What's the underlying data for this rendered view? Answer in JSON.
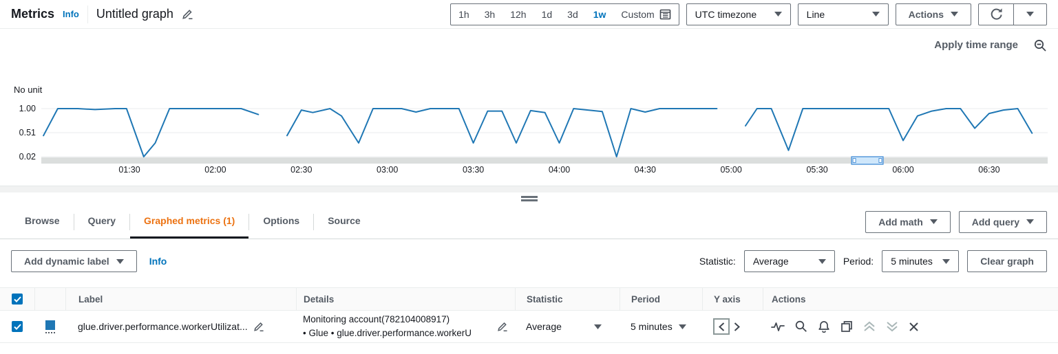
{
  "header": {
    "title": "Metrics",
    "info_label": "Info",
    "graph_title": "Untitled graph",
    "time_ranges": [
      "1h",
      "3h",
      "12h",
      "1d",
      "3d",
      "1w"
    ],
    "selected_time_range": "1w",
    "custom_label": "Custom",
    "timezone_dropdown_value": "UTC timezone",
    "chart_type_dropdown_value": "Line",
    "actions_label": "Actions"
  },
  "chart": {
    "apply_time_range_label": "Apply time range",
    "unit_label": "No unit"
  },
  "chart_data": {
    "type": "line",
    "title": "",
    "ylabel": "No unit",
    "xlabel": "",
    "grid": true,
    "legend": false,
    "ylim": [
      0.02,
      1.06
    ],
    "y_ticks": [
      1.0,
      0.51,
      0.02
    ],
    "x_ticks": [
      {
        "label": "01:30",
        "minutes": 90
      },
      {
        "label": "02:00",
        "minutes": 120
      },
      {
        "label": "02:30",
        "minutes": 150
      },
      {
        "label": "03:00",
        "minutes": 180
      },
      {
        "label": "03:30",
        "minutes": 210
      },
      {
        "label": "04:00",
        "minutes": 240
      },
      {
        "label": "04:30",
        "minutes": 270
      },
      {
        "label": "05:00",
        "minutes": 300
      },
      {
        "label": "05:30",
        "minutes": 330
      },
      {
        "label": "06:00",
        "minutes": 360
      },
      {
        "label": "06:30",
        "minutes": 390
      }
    ],
    "series": [
      {
        "name": "glue.driver.performance.workerUtilization",
        "color": "#1f77b4",
        "statistic": "Average",
        "period": "5 minutes",
        "segments": [
          [
            [
              60,
              0.45
            ],
            [
              65,
              1.0
            ],
            [
              72,
              1.0
            ],
            [
              78,
              0.98
            ],
            [
              85,
              1.0
            ],
            [
              89,
              1.0
            ],
            [
              95,
              0.02
            ],
            [
              99,
              0.3
            ],
            [
              104,
              1.0
            ],
            [
              129,
              1.0
            ],
            [
              135,
              0.88
            ]
          ],
          [
            [
              145,
              0.45
            ],
            [
              150,
              0.97
            ],
            [
              154,
              0.92
            ],
            [
              160,
              1.0
            ],
            [
              164,
              0.85
            ],
            [
              170,
              0.3
            ],
            [
              175,
              1.0
            ],
            [
              185,
              1.0
            ],
            [
              190,
              0.93
            ],
            [
              195,
              1.0
            ],
            [
              205,
              1.0
            ],
            [
              210,
              0.3
            ],
            [
              215,
              0.95
            ],
            [
              220,
              0.95
            ],
            [
              225,
              0.3
            ],
            [
              230,
              0.96
            ],
            [
              235,
              0.92
            ],
            [
              240,
              0.3
            ],
            [
              245,
              1.0
            ],
            [
              255,
              0.94
            ],
            [
              260,
              0.02
            ],
            [
              265,
              1.0
            ],
            [
              270,
              0.93
            ],
            [
              275,
              1.0
            ],
            [
              295,
              1.0
            ]
          ],
          [
            [
              305,
              0.65
            ],
            [
              309,
              1.0
            ],
            [
              314,
              1.0
            ],
            [
              320,
              0.15
            ],
            [
              325,
              1.0
            ],
            [
              355,
              1.0
            ],
            [
              360,
              0.35
            ],
            [
              365,
              0.85
            ],
            [
              370,
              0.95
            ],
            [
              375,
              1.0
            ],
            [
              380,
              1.0
            ],
            [
              385,
              0.6
            ],
            [
              390,
              0.9
            ],
            [
              395,
              0.97
            ],
            [
              400,
              1.0
            ],
            [
              405,
              0.5
            ]
          ]
        ]
      }
    ],
    "scrollbar": {
      "thumb_start_minutes": 342,
      "thumb_end_minutes": 353
    }
  },
  "tabs": {
    "items": [
      {
        "label": "Browse"
      },
      {
        "label": "Query"
      },
      {
        "label": "Graphed metrics (1)"
      },
      {
        "label": "Options"
      },
      {
        "label": "Source"
      }
    ],
    "active": "Graphed metrics (1)",
    "add_math_label": "Add math",
    "add_query_label": "Add query"
  },
  "toolbar": {
    "add_dynamic_label": "Add dynamic label",
    "info_label": "Info",
    "statistic_label": "Statistic:",
    "statistic_value": "Average",
    "period_label": "Period:",
    "period_value": "5 minutes",
    "clear_graph_label": "Clear graph"
  },
  "table": {
    "columns": [
      "Label",
      "Details",
      "Statistic",
      "Period",
      "Y axis",
      "Actions"
    ],
    "rows": [
      {
        "checked": true,
        "color": "#1f77b4",
        "label": "glue.driver.performance.workerUtilizat...",
        "details_line1": "Monitoring account(782104008917)",
        "details_line2": "• Glue • glue.driver.performance.workerU",
        "statistic": "Average",
        "period": "5 minutes"
      }
    ]
  },
  "colors": {
    "accent_blue": "#0073bb",
    "active_tab_orange": "#ec7211",
    "series_blue": "#1f77b4",
    "button_border": "#687078"
  }
}
